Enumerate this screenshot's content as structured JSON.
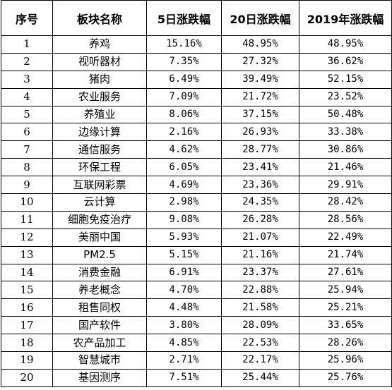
{
  "table": {
    "headers": [
      "序号",
      "板块名称",
      "5日涨跌幅",
      "20日涨跌幅",
      "2019年涨跌幅"
    ],
    "rows": [
      [
        "1",
        "养鸡",
        "15.16%",
        "48.95%",
        "48.95%"
      ],
      [
        "2",
        "视听器材",
        "7.35%",
        "27.32%",
        "36.62%"
      ],
      [
        "3",
        "猪肉",
        "6.49%",
        "39.49%",
        "52.15%"
      ],
      [
        "4",
        "农业服务",
        "7.09%",
        "21.72%",
        "23.52%"
      ],
      [
        "5",
        "养殖业",
        "8.06%",
        "37.15%",
        "50.48%"
      ],
      [
        "6",
        "边缘计算",
        "2.16%",
        "26.93%",
        "33.38%"
      ],
      [
        "7",
        "通信服务",
        "4.62%",
        "28.77%",
        "30.86%"
      ],
      [
        "8",
        "环保工程",
        "6.05%",
        "23.41%",
        "21.46%"
      ],
      [
        "9",
        "互联网彩票",
        "4.69%",
        "23.36%",
        "29.91%"
      ],
      [
        "10",
        "云计算",
        "2.98%",
        "24.35%",
        "28.42%"
      ],
      [
        "11",
        "细胞免疫治疗",
        "9.08%",
        "26.28%",
        "28.56%"
      ],
      [
        "12",
        "美丽中国",
        "5.93%",
        "21.07%",
        "22.49%"
      ],
      [
        "13",
        "PM2.5",
        "5.15%",
        "21.16%",
        "21.74%"
      ],
      [
        "14",
        "消费金融",
        "6.91%",
        "23.37%",
        "27.61%"
      ],
      [
        "15",
        "养老概念",
        "4.70%",
        "22.88%",
        "25.94%"
      ],
      [
        "16",
        "租售同权",
        "4.48%",
        "21.58%",
        "25.21%"
      ],
      [
        "17",
        "国产软件",
        "3.80%",
        "28.09%",
        "33.65%"
      ],
      [
        "18",
        "农产品加工",
        "4.85%",
        "22.53%",
        "28.26%"
      ],
      [
        "19",
        "智慧城市",
        "2.71%",
        "22.17%",
        "25.96%"
      ],
      [
        "20",
        "基因测序",
        "7.51%",
        "25.44%",
        "25.76%"
      ]
    ]
  }
}
